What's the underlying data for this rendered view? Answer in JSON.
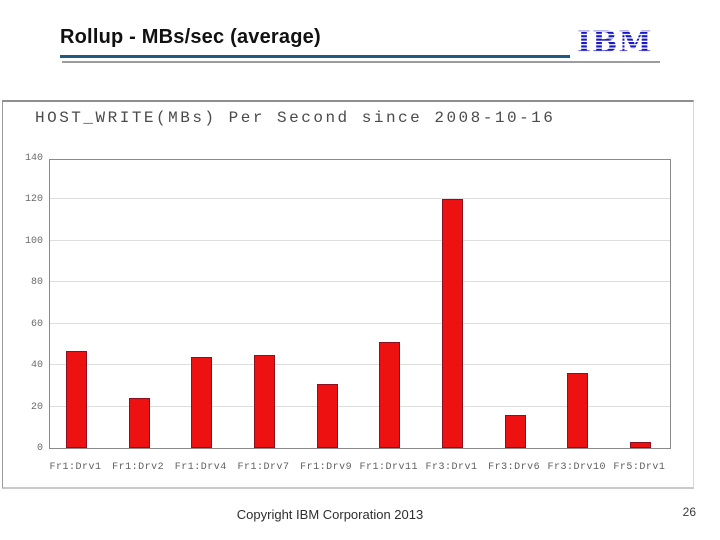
{
  "header": {
    "title": "Rollup - MBs/sec (average)",
    "logo_text": "IBM"
  },
  "chart_data": {
    "type": "bar",
    "title": "HOST_WRITE(MBs) Per Second since 2008-10-16",
    "categories": [
      "Fr1:Drv1",
      "Fr1:Drv2",
      "Fr1:Drv4",
      "Fr1:Drv7",
      "Fr1:Drv9",
      "Fr1:Drv11",
      "Fr3:Drv1",
      "Fr3:Drv6",
      "Fr3:Drv10",
      "Fr5:Drv1"
    ],
    "values": [
      47,
      24,
      44,
      45,
      31,
      51,
      120,
      16,
      36,
      3
    ],
    "xlabel": "",
    "ylabel": "",
    "ylim": [
      0,
      140
    ],
    "ytick_step": 20,
    "ytick_labels": [
      "0",
      "20",
      "40",
      "60",
      "80",
      "100",
      "120",
      "140"
    ],
    "grid": true,
    "legend": false,
    "bar_color": "#ee1111",
    "bar_border_color": "#8b1020"
  },
  "footer": {
    "copyright": "Copyright IBM Corporation 2013",
    "page_number": "26"
  },
  "colors": {
    "accent_rule": "#1e5a86",
    "secondary_rule": "#9c9c9c",
    "ibm_blue": "#1515c4",
    "gridline": "#dedede",
    "plot_border": "#8a8a8a"
  }
}
